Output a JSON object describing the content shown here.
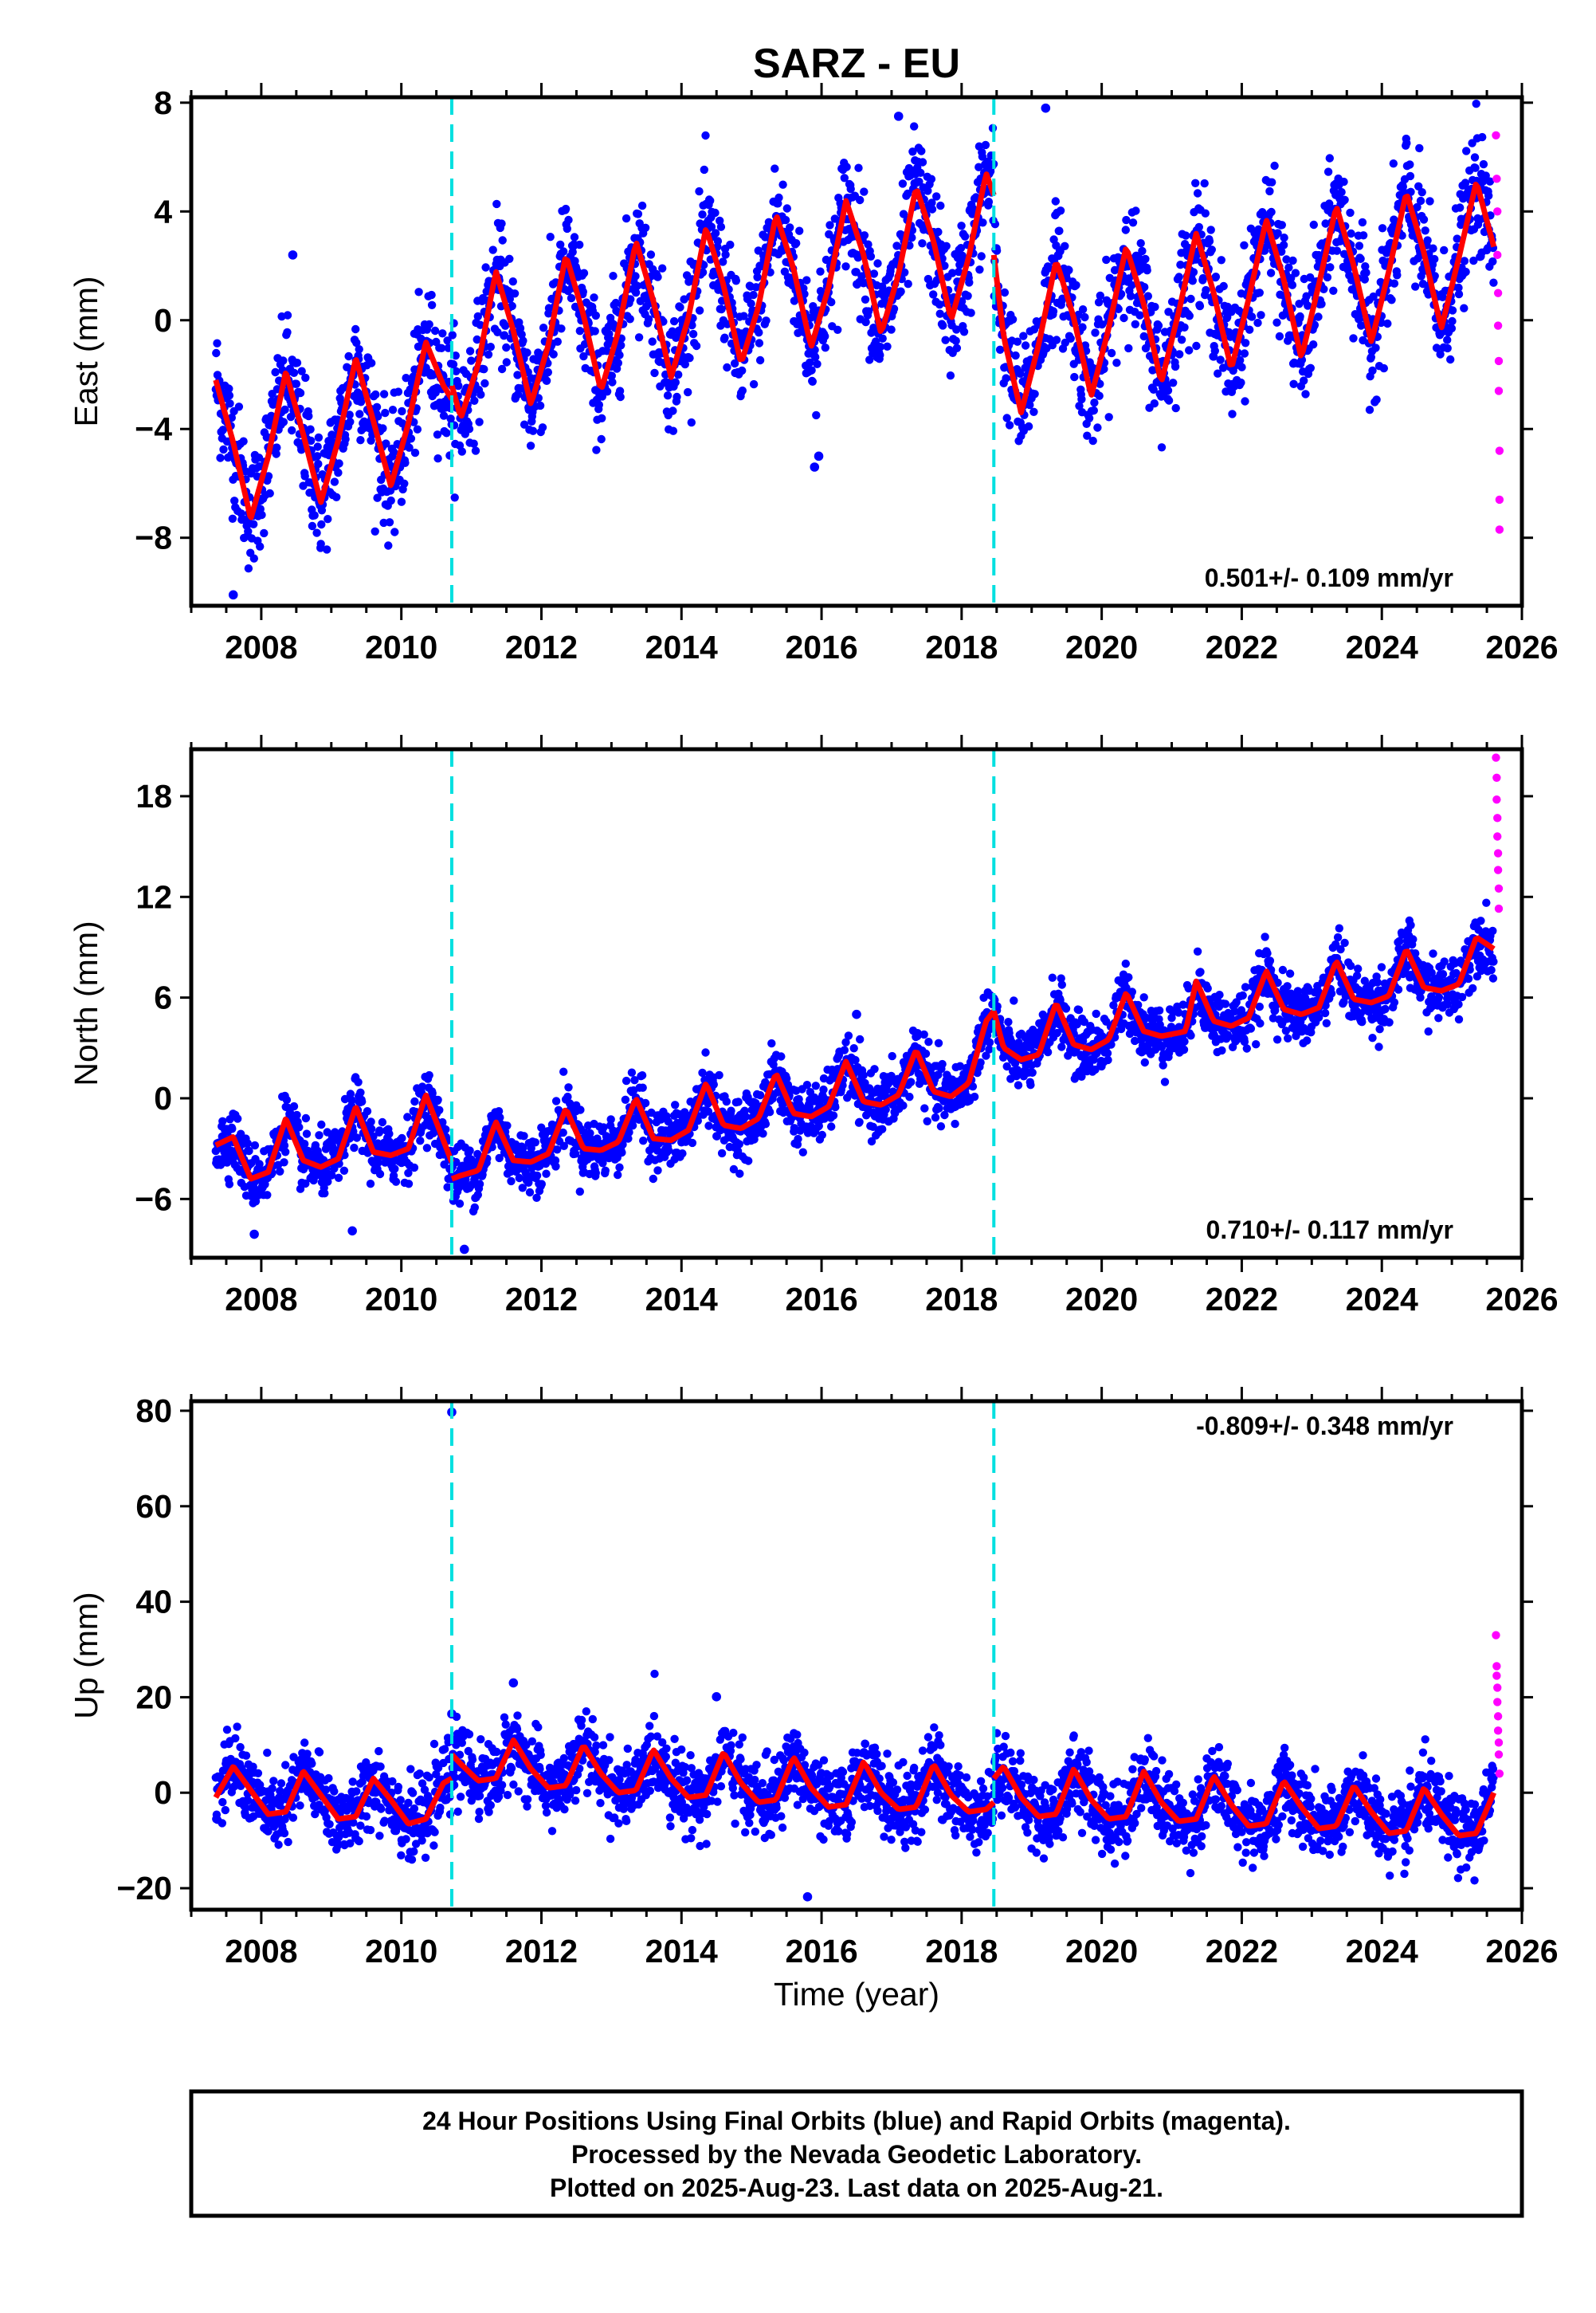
{
  "title": "SARZ - EU",
  "xlabel": "Time (year)",
  "colors": {
    "final_points": "#0000ff",
    "rapid_points": "#ff00ff",
    "model_line": "#ff0000",
    "event_lines": "#00e0e0",
    "frame": "#000000"
  },
  "footer": {
    "line1": "24 Hour Positions Using Final Orbits (blue) and Rapid Orbits (magenta).",
    "line2": "Processed by the Nevada Geodetic Laboratory.",
    "line3": "Plotted on 2025-Aug-23. Last data on 2025-Aug-21."
  },
  "chart_data": [
    {
      "type": "scatter",
      "name": "East",
      "ylabel": "East (mm)",
      "rate_label": "0.501+/- 0.109 mm/yr",
      "rate_placement": "bottom-right",
      "xlim": [
        2007.0,
        2026.0
      ],
      "ylim": [
        -10.5,
        8.2
      ],
      "x_ticks": [
        2008,
        2010,
        2012,
        2014,
        2016,
        2018,
        2020,
        2022,
        2024,
        2026
      ],
      "y_ticks": [
        8,
        4,
        0,
        -4,
        -8
      ],
      "y_tick_labels": [
        "8",
        "4",
        "0",
        "−4",
        "−8"
      ],
      "event_lines_x": [
        2010.72,
        2018.46
      ],
      "data_range_x": [
        2007.35,
        2025.6
      ],
      "trend_segments": [
        {
          "x": [
            2007.35,
            2010.72
          ],
          "y": [
            -4.4,
            -2.6
          ]
        },
        {
          "x": [
            2010.72,
            2018.46
          ],
          "y": [
            -1.2,
            2.7
          ]
        },
        {
          "x": [
            2018.46,
            2025.6
          ],
          "y": [
            -0.5,
            2.6
          ]
        }
      ],
      "model_curve_segments": [
        {
          "x": [
            2007.35,
            2007.6,
            2007.85,
            2008.1,
            2008.35,
            2008.6,
            2008.85,
            2009.1,
            2009.35,
            2009.6,
            2009.85,
            2010.1,
            2010.35,
            2010.6,
            2010.72
          ],
          "y": [
            -2.2,
            -4.5,
            -7.3,
            -5.0,
            -1.9,
            -4.2,
            -6.7,
            -4.4,
            -1.4,
            -3.7,
            -6.1,
            -3.8,
            -0.8,
            -2.4,
            -2.9
          ]
        },
        {
          "x": [
            2010.72,
            2010.85,
            2011.1,
            2011.35,
            2011.6,
            2011.85,
            2012.1,
            2012.35,
            2012.6,
            2012.85,
            2013.1,
            2013.35,
            2013.6,
            2013.85,
            2014.1,
            2014.35,
            2014.6,
            2014.85,
            2015.1,
            2015.35,
            2015.6,
            2015.85,
            2016.1,
            2016.35,
            2016.6,
            2016.85,
            2017.1,
            2017.35,
            2017.6,
            2017.85,
            2018.1,
            2018.35,
            2018.46
          ],
          "y": [
            -2.4,
            -3.6,
            -1.6,
            1.8,
            -0.4,
            -3.1,
            -0.9,
            2.4,
            0.2,
            -2.6,
            -0.4,
            2.9,
            0.7,
            -2.1,
            0.1,
            3.4,
            1.3,
            -1.6,
            0.5,
            3.9,
            1.9,
            -1.0,
            1.2,
            4.4,
            2.4,
            -0.5,
            1.7,
            4.9,
            2.9,
            0.0,
            2.3,
            5.4,
            4.6
          ]
        },
        {
          "x": [
            2018.46,
            2018.6,
            2018.85,
            2019.1,
            2019.35,
            2019.6,
            2019.85,
            2020.1,
            2020.35,
            2020.6,
            2020.85,
            2021.1,
            2021.35,
            2021.6,
            2021.85,
            2022.1,
            2022.35,
            2022.6,
            2022.85,
            2023.1,
            2023.35,
            2023.6,
            2023.85,
            2024.1,
            2024.35,
            2024.6,
            2024.85,
            2025.1,
            2025.35,
            2025.6
          ],
          "y": [
            2.4,
            -0.6,
            -3.4,
            -0.9,
            2.2,
            0.1,
            -2.8,
            -0.3,
            2.7,
            0.6,
            -2.3,
            0.3,
            3.2,
            1.0,
            -1.8,
            0.8,
            3.7,
            1.5,
            -1.4,
            1.3,
            4.2,
            2.0,
            -0.8,
            1.8,
            4.7,
            2.5,
            -0.3,
            2.3,
            5.1,
            2.7
          ]
        }
      ],
      "seasonal_amplitude": 2.8,
      "scatter_noise": 1.1,
      "outlier_points": [
        {
          "x": 2015.9,
          "y": -5.4
        },
        {
          "x": 2019.2,
          "y": 7.8
        },
        {
          "x": 2017.1,
          "y": 7.5
        },
        {
          "x": 2007.6,
          "y": -10.1
        },
        {
          "x": 2008.45,
          "y": 2.4
        },
        {
          "x": 2015.96,
          "y": -5.0
        }
      ],
      "rapid_points": [
        {
          "x": 2025.63,
          "y": 6.8
        },
        {
          "x": 2025.64,
          "y": 5.2
        },
        {
          "x": 2025.65,
          "y": 4.0
        },
        {
          "x": 2025.65,
          "y": 2.4
        },
        {
          "x": 2025.66,
          "y": 1.0
        },
        {
          "x": 2025.66,
          "y": -0.2
        },
        {
          "x": 2025.67,
          "y": -1.5
        },
        {
          "x": 2025.67,
          "y": -2.6
        },
        {
          "x": 2025.68,
          "y": -4.8
        },
        {
          "x": 2025.68,
          "y": -6.6
        },
        {
          "x": 2025.68,
          "y": -7.7
        }
      ]
    },
    {
      "type": "scatter",
      "name": "North",
      "ylabel": "North (mm)",
      "rate_label": "0.710+/- 0.117 mm/yr",
      "rate_placement": "bottom-right",
      "xlim": [
        2007.0,
        2026.0
      ],
      "ylim": [
        -9.5,
        20.8
      ],
      "x_ticks": [
        2008,
        2010,
        2012,
        2014,
        2016,
        2018,
        2020,
        2022,
        2024,
        2026
      ],
      "y_ticks": [
        18,
        12,
        6,
        0,
        -6
      ],
      "y_tick_labels": [
        "18",
        "12",
        "6",
        "0",
        "−6"
      ],
      "event_lines_x": [
        2010.72,
        2018.46
      ],
      "data_range_x": [
        2007.35,
        2025.6
      ],
      "model_curve_segments": [
        {
          "x": [
            2007.35,
            2007.6,
            2007.85,
            2008.1,
            2008.35,
            2008.6,
            2008.85,
            2009.1,
            2009.35,
            2009.6,
            2009.85,
            2010.1,
            2010.35,
            2010.6,
            2010.72
          ],
          "y": [
            -2.8,
            -2.3,
            -4.8,
            -4.4,
            -1.2,
            -3.7,
            -4.1,
            -3.6,
            -0.5,
            -3.2,
            -3.4,
            -3.0,
            0.2,
            -2.5,
            -3.8
          ]
        },
        {
          "x": [
            2010.72,
            2010.85,
            2011.1,
            2011.35,
            2011.6,
            2011.85,
            2012.1,
            2012.35,
            2012.6,
            2012.85,
            2013.1,
            2013.35,
            2013.6,
            2013.85,
            2014.1,
            2014.35,
            2014.6,
            2014.85,
            2015.1,
            2015.35,
            2015.6,
            2015.85,
            2016.1,
            2016.35,
            2016.6,
            2016.85,
            2017.1,
            2017.35,
            2017.6,
            2017.85,
            2018.1,
            2018.35,
            2018.46
          ],
          "y": [
            -4.8,
            -4.6,
            -4.3,
            -1.4,
            -3.7,
            -3.8,
            -3.3,
            -0.6,
            -3.0,
            -3.1,
            -2.6,
            0.0,
            -2.4,
            -2.5,
            -1.9,
            0.9,
            -1.6,
            -1.8,
            -1.2,
            1.5,
            -0.9,
            -1.1,
            -0.5,
            2.2,
            -0.2,
            -0.4,
            0.2,
            2.9,
            0.4,
            0.1,
            0.9,
            4.6,
            5.2
          ]
        },
        {
          "x": [
            2018.46,
            2018.6,
            2018.85,
            2019.1,
            2019.35,
            2019.6,
            2019.85,
            2020.1,
            2020.35,
            2020.6,
            2020.85,
            2021.1,
            2021.2,
            2021.35,
            2021.6,
            2021.85,
            2022.1,
            2022.35,
            2022.6,
            2022.85,
            2023.1,
            2023.35,
            2023.6,
            2023.85,
            2024.1,
            2024.35,
            2024.6,
            2024.85,
            2025.1,
            2025.35,
            2025.6
          ],
          "y": [
            5.2,
            3.0,
            2.3,
            2.6,
            5.7,
            3.2,
            2.9,
            3.5,
            6.3,
            4.0,
            3.7,
            3.9,
            4.0,
            7.0,
            4.6,
            4.3,
            4.8,
            7.6,
            5.3,
            5.0,
            5.4,
            8.2,
            5.9,
            5.7,
            6.1,
            8.9,
            6.6,
            6.4,
            6.8,
            9.6,
            8.9
          ]
        }
      ],
      "seasonal_amplitude": 1.4,
      "scatter_noise": 0.9,
      "outlier_points": [
        {
          "x": 2010.9,
          "y": -9.0
        },
        {
          "x": 2009.3,
          "y": -7.9
        },
        {
          "x": 2007.9,
          "y": -8.1
        },
        {
          "x": 2016.5,
          "y": 5.0
        }
      ],
      "rapid_points": [
        {
          "x": 2025.63,
          "y": 20.3
        },
        {
          "x": 2025.64,
          "y": 19.1
        },
        {
          "x": 2025.64,
          "y": 17.8
        },
        {
          "x": 2025.65,
          "y": 16.7
        },
        {
          "x": 2025.65,
          "y": 15.6
        },
        {
          "x": 2025.66,
          "y": 14.6
        },
        {
          "x": 2025.66,
          "y": 13.6
        },
        {
          "x": 2025.67,
          "y": 12.5
        },
        {
          "x": 2025.67,
          "y": 11.3
        }
      ]
    },
    {
      "type": "scatter",
      "name": "Up",
      "ylabel": "Up (mm)",
      "rate_label": "-0.809+/- 0.348 mm/yr",
      "rate_placement": "top-right",
      "xlim": [
        2007.0,
        2026.0
      ],
      "ylim": [
        -24.5,
        82.0
      ],
      "x_ticks": [
        2008,
        2010,
        2012,
        2014,
        2016,
        2018,
        2020,
        2022,
        2024,
        2026
      ],
      "y_ticks": [
        80,
        60,
        40,
        20,
        0,
        -20
      ],
      "y_tick_labels": [
        "80",
        "60",
        "40",
        "20",
        "0",
        "−20"
      ],
      "event_lines_x": [
        2010.72,
        2018.46
      ],
      "data_range_x": [
        2007.35,
        2025.6
      ],
      "model_curve_segments": [
        {
          "x": [
            2007.35,
            2007.6,
            2007.85,
            2008.1,
            2008.35,
            2008.6,
            2008.85,
            2009.1,
            2009.35,
            2009.6,
            2009.85,
            2010.1,
            2010.35,
            2010.6,
            2010.72
          ],
          "y": [
            -1.0,
            5.5,
            0.5,
            -4.5,
            -4.0,
            4.5,
            -0.5,
            -5.5,
            -5.0,
            3.0,
            -1.5,
            -6.5,
            -5.5,
            2.0,
            3.0
          ]
        },
        {
          "x": [
            2010.72,
            2010.85,
            2011.1,
            2011.35,
            2011.6,
            2011.85,
            2012.1,
            2012.35,
            2012.6,
            2012.85,
            2013.1,
            2013.35,
            2013.6,
            2013.85,
            2014.1,
            2014.35,
            2014.6,
            2014.85,
            2015.1,
            2015.35,
            2015.6,
            2015.85,
            2016.1,
            2016.35,
            2016.6,
            2016.85,
            2017.1,
            2017.35,
            2017.6,
            2017.85,
            2018.1,
            2018.35,
            2018.46
          ],
          "y": [
            8.0,
            6.0,
            2.5,
            3.0,
            11.0,
            5.0,
            1.0,
            1.5,
            10.0,
            4.0,
            0.0,
            0.5,
            9.0,
            3.0,
            -1.0,
            -0.5,
            8.5,
            2.0,
            -2.0,
            -1.5,
            7.5,
            1.0,
            -3.0,
            -2.5,
            6.5,
            0.0,
            -3.5,
            -3.0,
            6.0,
            -0.5,
            -4.0,
            -3.5,
            -2.0
          ]
        },
        {
          "x": [
            2018.46,
            2018.6,
            2018.85,
            2019.1,
            2019.35,
            2019.6,
            2019.85,
            2020.1,
            2020.35,
            2020.6,
            2020.85,
            2021.1,
            2021.35,
            2021.6,
            2021.85,
            2022.1,
            2022.35,
            2022.6,
            2022.85,
            2023.1,
            2023.35,
            2023.6,
            2023.85,
            2024.1,
            2024.35,
            2024.6,
            2024.85,
            2025.1,
            2025.35,
            2025.6
          ],
          "y": [
            3.0,
            5.5,
            -1.0,
            -5.0,
            -4.5,
            5.0,
            -1.5,
            -5.5,
            -5.0,
            4.5,
            -2.0,
            -6.0,
            -5.5,
            3.5,
            -2.5,
            -7.0,
            -6.5,
            2.5,
            -3.0,
            -7.5,
            -7.0,
            1.5,
            -4.0,
            -8.5,
            -8.0,
            1.0,
            -4.5,
            -9.0,
            -8.5,
            0.0
          ]
        }
      ],
      "seasonal_amplitude": 5.0,
      "scatter_noise": 3.8,
      "outlier_points": [
        {
          "x": 2010.72,
          "y": 79.7
        },
        {
          "x": 2015.8,
          "y": -21.8
        },
        {
          "x": 2014.5,
          "y": 20.1
        },
        {
          "x": 2011.6,
          "y": 23.0
        },
        {
          "x": 2010.72,
          "y": 16.5
        }
      ],
      "rapid_points": [
        {
          "x": 2025.63,
          "y": 33.0
        },
        {
          "x": 2025.64,
          "y": 26.5
        },
        {
          "x": 2025.64,
          "y": 24.5
        },
        {
          "x": 2025.65,
          "y": 22.0
        },
        {
          "x": 2025.65,
          "y": 19.0
        },
        {
          "x": 2025.66,
          "y": 16.0
        },
        {
          "x": 2025.66,
          "y": 13.0
        },
        {
          "x": 2025.67,
          "y": 10.5
        },
        {
          "x": 2025.67,
          "y": 8.0
        },
        {
          "x": 2025.68,
          "y": 4.0
        }
      ]
    }
  ]
}
